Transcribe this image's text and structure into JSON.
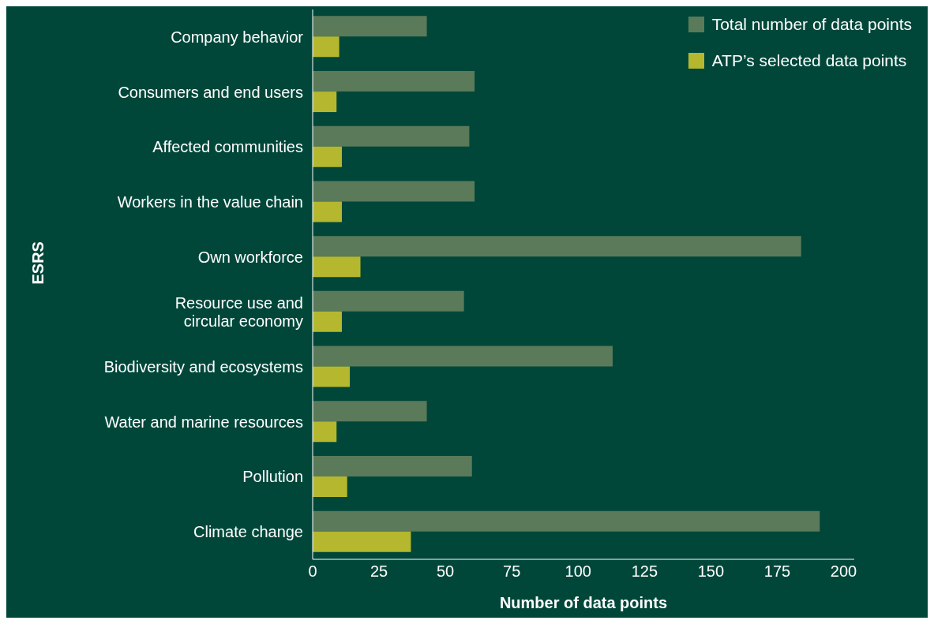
{
  "chart_data": {
    "type": "bar",
    "orientation": "horizontal",
    "ylabel": "ESRS",
    "xlabel": "Number of data points",
    "categories": [
      "Company behavior",
      "Consumers and end users",
      "Affected communities",
      "Workers in the value chain",
      "Own workforce",
      "Resource use and\ncircular economy",
      "Biodiversity and ecosystems",
      "Water and marine resources",
      "Pollution",
      "Climate change"
    ],
    "series": [
      {
        "name": "Total number of data points",
        "color": "#5a7a5a",
        "values": [
          43,
          61,
          59,
          61,
          184,
          57,
          113,
          43,
          60,
          191
        ]
      },
      {
        "name": "ATP’s selected data points",
        "color": "#b5b82e",
        "values": [
          10,
          9,
          11,
          11,
          18,
          11,
          14,
          9,
          13,
          37
        ]
      }
    ],
    "xlim": [
      0,
      204
    ],
    "xticks": [
      0,
      25,
      50,
      75,
      100,
      125,
      150,
      175,
      200
    ],
    "grid": false,
    "legend": "top right"
  }
}
